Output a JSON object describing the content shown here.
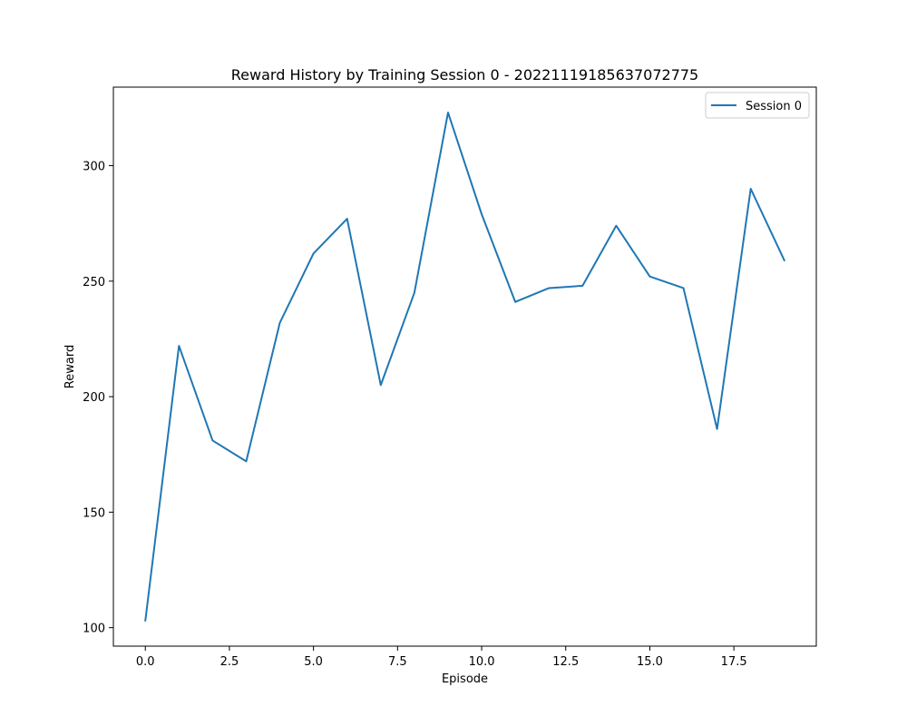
{
  "chart_data": {
    "type": "line",
    "title": "Reward History by Training Session 0 - 20221119185637072775",
    "xlabel": "Episode",
    "ylabel": "Reward",
    "xlim": [
      -0.95,
      19.95
    ],
    "ylim": [
      92,
      334
    ],
    "xticks": [
      0.0,
      2.5,
      5.0,
      7.5,
      10.0,
      12.5,
      15.0,
      17.5
    ],
    "xtick_labels": [
      "0.0",
      "2.5",
      "5.0",
      "7.5",
      "10.0",
      "12.5",
      "15.0",
      "17.5"
    ],
    "yticks": [
      100,
      150,
      200,
      250,
      300
    ],
    "ytick_labels": [
      "100",
      "150",
      "200",
      "250",
      "300"
    ],
    "grid": false,
    "legend_position": "top-right",
    "series": [
      {
        "name": "Session 0",
        "color": "#1f77b4",
        "x": [
          0,
          1,
          2,
          3,
          4,
          5,
          6,
          7,
          8,
          9,
          10,
          11,
          12,
          13,
          14,
          15,
          16,
          17,
          18,
          19
        ],
        "values": [
          103,
          222,
          181,
          172,
          232,
          262,
          277,
          205,
          245,
          323,
          279,
          241,
          247,
          248,
          274,
          252,
          247,
          186,
          290,
          259
        ]
      }
    ]
  }
}
